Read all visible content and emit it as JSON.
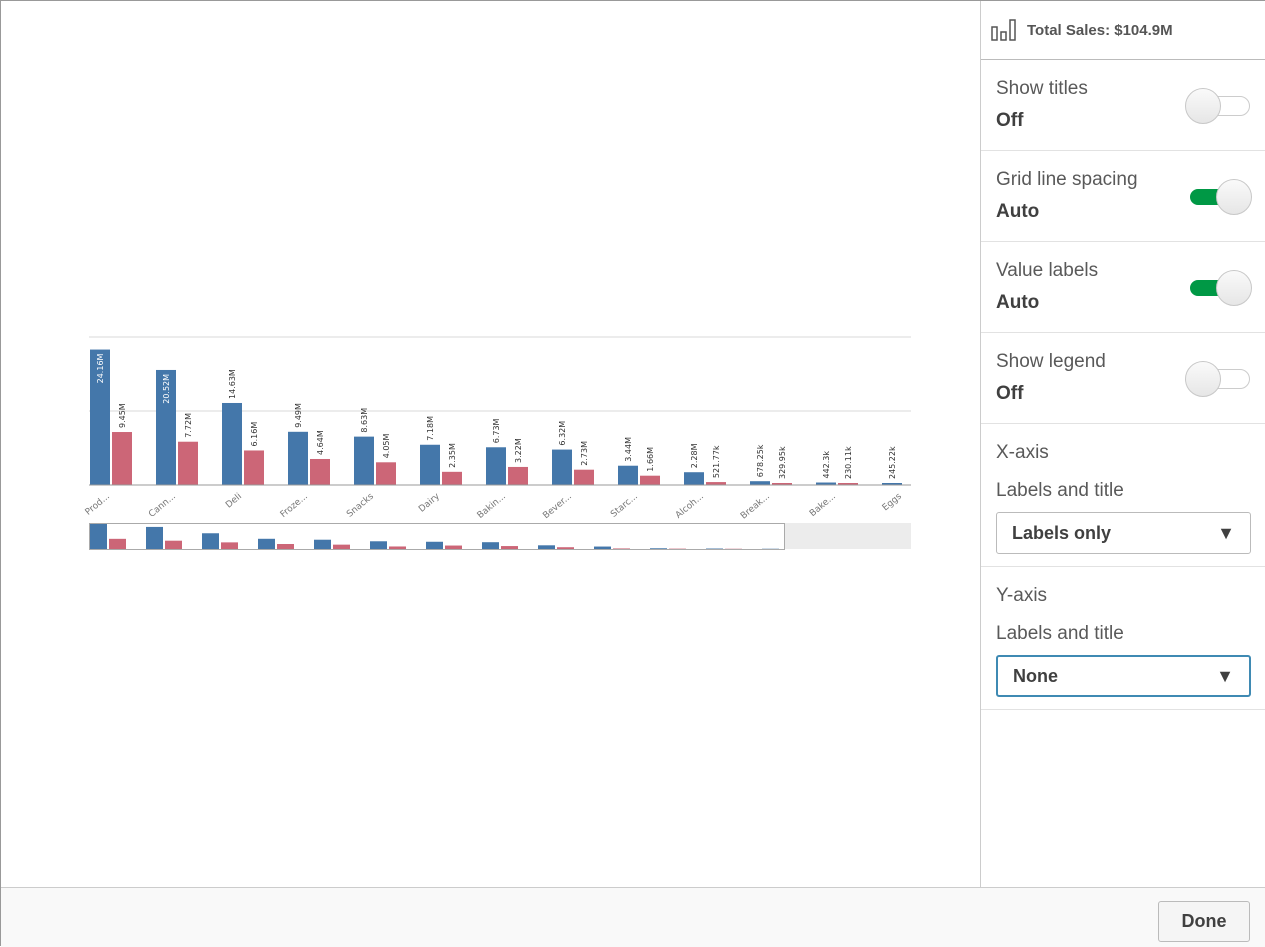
{
  "panel": {
    "header_icon": "bar-chart-icon",
    "title": "Total Sales: $104.9M",
    "show_titles": {
      "label": "Show titles",
      "value": "Off",
      "on": false
    },
    "grid_line_spacing": {
      "label": "Grid line spacing",
      "value": "Auto",
      "on": true
    },
    "value_labels": {
      "label": "Value labels",
      "value": "Auto",
      "on": true
    },
    "show_legend": {
      "label": "Show legend",
      "value": "Off",
      "on": false
    },
    "x_axis": {
      "label": "X-axis",
      "sub": "Labels and title",
      "selected": "Labels only"
    },
    "y_axis": {
      "label": "Y-axis",
      "sub": "Labels and title",
      "selected": "None"
    }
  },
  "footer": {
    "done_label": "Done"
  },
  "chart_data": {
    "type": "bar",
    "grouped": true,
    "categories": [
      "Prod...",
      "Cann...",
      "Deli",
      "Froze...",
      "Snacks",
      "Dairy",
      "Bakin...",
      "Bever...",
      "Starc...",
      "Alcoh...",
      "Break...",
      "Bake...",
      "Eggs"
    ],
    "series": [
      {
        "color": "#4477aa",
        "values": [
          24.16,
          20.52,
          14.63,
          9.49,
          8.63,
          7.18,
          6.73,
          6.32,
          3.44,
          2.28,
          0.67825,
          0.4423,
          0.24522
        ],
        "labels": [
          "24.16M",
          "20.52M",
          "14.63M",
          "9.49M",
          "8.63M",
          "7.18M",
          "6.73M",
          "6.32M",
          "3.44M",
          "2.28M",
          "678.25k",
          "442.3k",
          "245.22k"
        ]
      },
      {
        "color": "#cc6677",
        "values": [
          9.45,
          7.72,
          6.16,
          4.64,
          4.05,
          2.35,
          3.22,
          2.73,
          1.66,
          0.52177,
          0.32995,
          0.23011,
          null
        ],
        "labels": [
          "9.45M",
          "7.72M",
          "6.16M",
          "4.64M",
          "4.05M",
          "2.35M",
          "3.22M",
          "2.73M",
          "1.66M",
          "521.77k",
          "329.95k",
          "230.11k",
          ""
        ]
      }
    ],
    "ylim": [
      0,
      26.4
    ],
    "grid": true,
    "legend": "none",
    "title": "",
    "xlabel": "",
    "ylabel": ""
  }
}
